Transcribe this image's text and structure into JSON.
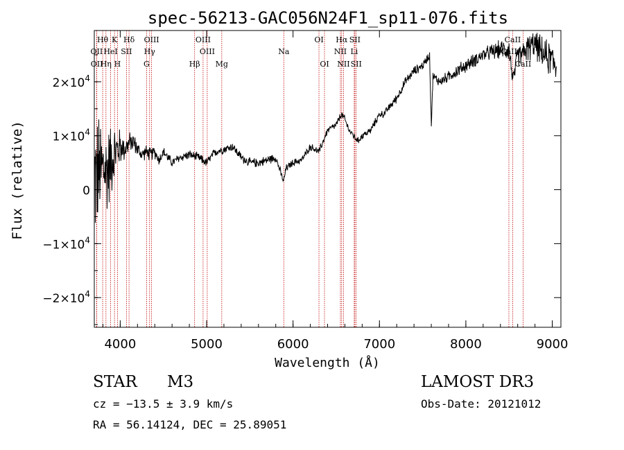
{
  "chart_data": {
    "type": "line",
    "title": "spec-56213-GAC056N24F1_sp11-076.fits",
    "xlabel": "Wavelength (Å)",
    "ylabel": "Flux (relative)",
    "xlim": [
      3700,
      9100
    ],
    "ylim": [
      -25500,
      29500
    ],
    "x_ticks": [
      {
        "value": 4000,
        "label": "4000"
      },
      {
        "value": 5000,
        "label": "5000"
      },
      {
        "value": 6000,
        "label": "6000"
      },
      {
        "value": 7000,
        "label": "7000"
      },
      {
        "value": 8000,
        "label": "8000"
      },
      {
        "value": 9000,
        "label": "9000"
      }
    ],
    "y_ticks": [
      {
        "value": -20000,
        "mantissa": "−2×10",
        "exp": "4"
      },
      {
        "value": -10000,
        "mantissa": "−1×10",
        "exp": "4"
      },
      {
        "value": 0,
        "mantissa": "0",
        "exp": ""
      },
      {
        "value": 10000,
        "mantissa": "1×10",
        "exp": "4"
      },
      {
        "value": 20000,
        "mantissa": "2×10",
        "exp": "4"
      }
    ],
    "spectrum": {
      "name": "flux",
      "x": [
        3700,
        3750,
        3800,
        3850,
        3900,
        3950,
        4000,
        4050,
        4100,
        4150,
        4200,
        4250,
        4300,
        4350,
        4400,
        4450,
        4500,
        4600,
        4700,
        4800,
        4900,
        5000,
        5100,
        5200,
        5300,
        5400,
        5500,
        5600,
        5700,
        5800,
        5890,
        5920,
        6000,
        6100,
        6200,
        6300,
        6400,
        6500,
        6560,
        6600,
        6650,
        6700,
        6750,
        6800,
        6900,
        7000,
        7050,
        7100,
        7200,
        7300,
        7400,
        7500,
        7580,
        7600,
        7620,
        7700,
        7800,
        7900,
        8000,
        8100,
        8200,
        8300,
        8400,
        8500,
        8550,
        8600,
        8650,
        8700,
        8800,
        8900,
        9000,
        9050
      ],
      "y": [
        2000,
        3000,
        4000,
        3500,
        6000,
        7000,
        8000,
        7500,
        8500,
        9000,
        7500,
        6500,
        7000,
        6500,
        7000,
        5500,
        7000,
        5000,
        6000,
        6500,
        6000,
        5000,
        7000,
        7500,
        8000,
        6000,
        5000,
        5000,
        5500,
        6000,
        1500,
        4000,
        5000,
        5500,
        8000,
        7000,
        11000,
        12000,
        14000,
        13000,
        11000,
        10000,
        9000,
        10000,
        11000,
        14000,
        14000,
        15000,
        17000,
        20000,
        22000,
        23000,
        25000,
        12000,
        21000,
        20000,
        21000,
        22000,
        23000,
        24000,
        25000,
        25500,
        26000,
        26000,
        20000,
        25000,
        25000,
        26000,
        27000,
        25000,
        24000,
        23000
      ],
      "noise_amplitude": [
        14000,
        13000,
        11000,
        10000,
        8000,
        6000,
        4000,
        2500,
        2500,
        2000,
        1800,
        1500,
        1500,
        1500,
        1500,
        1200,
        1200,
        1000,
        1000,
        1000,
        1000,
        1000,
        1000,
        1000,
        1000,
        1000,
        1000,
        1000,
        1000,
        1000,
        800,
        800,
        800,
        800,
        800,
        800,
        800,
        800,
        800,
        800,
        800,
        800,
        800,
        800,
        800,
        800,
        800,
        800,
        1000,
        1000,
        1000,
        1000,
        1000,
        1000,
        1000,
        1200,
        1200,
        1500,
        1500,
        1500,
        1500,
        1800,
        2000,
        2500,
        2500,
        2500,
        2500,
        3000,
        3000,
        3500,
        4000,
        4000
      ]
    },
    "line_markers": [
      {
        "label": "Hθ",
        "wavelength": 3797,
        "row": 0
      },
      {
        "label": "OII",
        "wavelength": 3727,
        "row": 1
      },
      {
        "label": "OII",
        "wavelength": 3729,
        "row": 2
      },
      {
        "label": "K",
        "wavelength": 3934,
        "row": 0
      },
      {
        "label": "HeI",
        "wavelength": 3889,
        "row": 1
      },
      {
        "label": "Hη",
        "wavelength": 3835,
        "row": 2
      },
      {
        "label": "Hδ",
        "wavelength": 4102,
        "row": 0
      },
      {
        "label": "SII",
        "wavelength": 4072,
        "row": 1
      },
      {
        "label": "H",
        "wavelength": 3968,
        "row": 2
      },
      {
        "label": "OIII",
        "wavelength": 4363,
        "row": 0
      },
      {
        "label": "Hγ",
        "wavelength": 4340,
        "row": 1
      },
      {
        "label": "G",
        "wavelength": 4305,
        "row": 2
      },
      {
        "label": "OIII",
        "wavelength": 4959,
        "row": 0
      },
      {
        "label": "OIII",
        "wavelength": 5007,
        "row": 1
      },
      {
        "label": "Hβ",
        "wavelength": 4861,
        "row": 2
      },
      {
        "label": "Mg",
        "wavelength": 5175,
        "row": 2
      },
      {
        "label": "Na",
        "wavelength": 5893,
        "row": 1
      },
      {
        "label": "OI",
        "wavelength": 6300,
        "row": 0
      },
      {
        "label": "OI",
        "wavelength": 6364,
        "row": 2
      },
      {
        "label": "Hα",
        "wavelength": 6563,
        "row": 0
      },
      {
        "label": "SII",
        "wavelength": 6716,
        "row": 0
      },
      {
        "label": "NII",
        "wavelength": 6548,
        "row": 1
      },
      {
        "label": "Li",
        "wavelength": 6708,
        "row": 1
      },
      {
        "label": "NII",
        "wavelength": 6584,
        "row": 2
      },
      {
        "label": "SII",
        "wavelength": 6731,
        "row": 2
      },
      {
        "label": "CaII",
        "wavelength": 8542,
        "row": 0
      },
      {
        "label": "CaII",
        "wavelength": 8498,
        "row": 1
      },
      {
        "label": "CaII",
        "wavelength": 8662,
        "row": 2
      }
    ]
  },
  "info": {
    "object_class": "STAR",
    "subclass": "M3",
    "redshift": "cz = −13.5 ± 3.9 km/s",
    "coords": "RA =  56.14124, DEC =  25.89051",
    "survey": "LAMOST DR3",
    "obs_date": "Obs-Date: 20121012"
  },
  "colors": {
    "axis": "#000000",
    "spectrum": "#000000",
    "marker": "#c00000"
  }
}
